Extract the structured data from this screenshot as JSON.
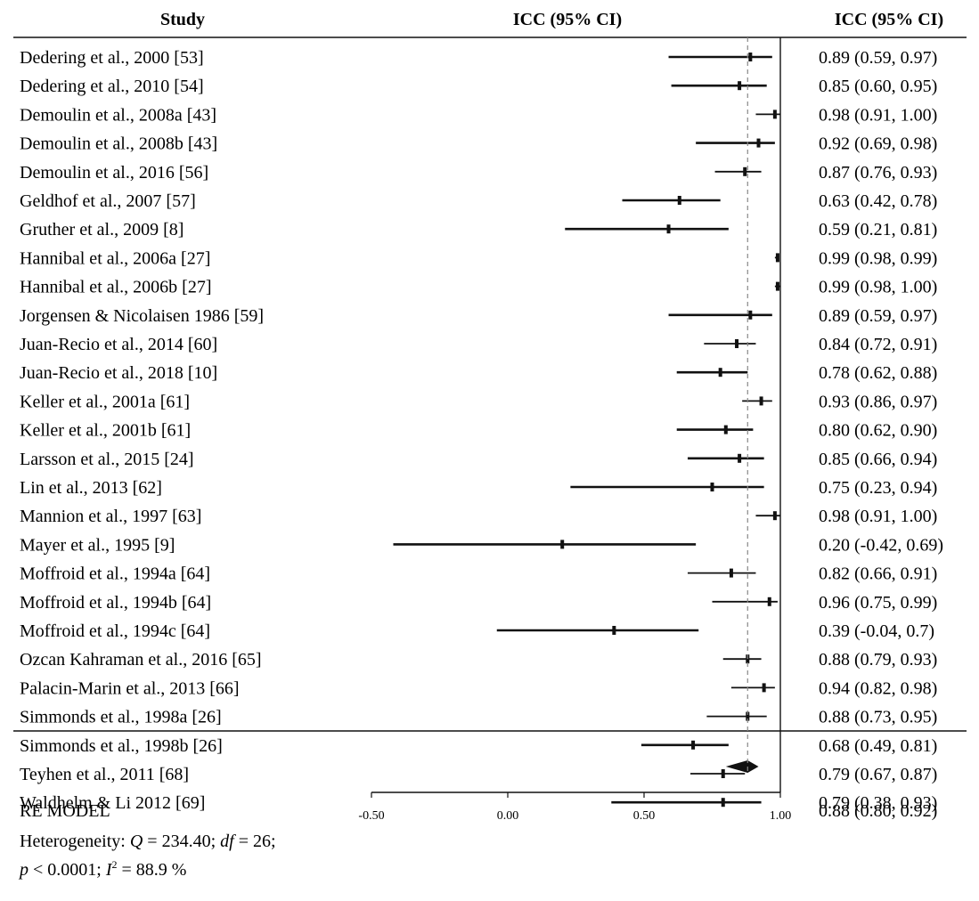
{
  "chart_data": {
    "type": "forest",
    "headers": {
      "study": "Study",
      "plot": "ICC (95% CI)",
      "estimate": "ICC (95% CI)"
    },
    "x_ticks": [
      -0.5,
      0.0,
      0.5,
      1.0
    ],
    "x_tick_labels": [
      "-0.50",
      "0.00",
      "0.50",
      "1.00"
    ],
    "xlim": [
      -0.5,
      1.0
    ],
    "reference_line": 0.88,
    "line_color": "#111111",
    "ref_line_color": "#888888",
    "studies": [
      {
        "label": "Dedering et al., 2000 [53]",
        "icc": 0.89,
        "lo": 0.59,
        "hi": 0.97,
        "text": "0.89 (0.59, 0.97)"
      },
      {
        "label": "Dedering et al., 2010 [54]",
        "icc": 0.85,
        "lo": 0.6,
        "hi": 0.95,
        "text": "0.85 (0.60, 0.95)"
      },
      {
        "label": "Demoulin et al., 2008a [43]",
        "icc": 0.98,
        "lo": 0.91,
        "hi": 1.0,
        "text": "0.98 (0.91, 1.00)"
      },
      {
        "label": "Demoulin et al., 2008b [43]",
        "icc": 0.92,
        "lo": 0.69,
        "hi": 0.98,
        "text": "0.92 (0.69, 0.98)"
      },
      {
        "label": "Demoulin et al., 2016 [56]",
        "icc": 0.87,
        "lo": 0.76,
        "hi": 0.93,
        "text": "0.87 (0.76, 0.93)"
      },
      {
        "label": "Geldhof et al., 2007 [57]",
        "icc": 0.63,
        "lo": 0.42,
        "hi": 0.78,
        "text": "0.63 (0.42, 0.78)"
      },
      {
        "label": "Gruther et al., 2009 [8]",
        "icc": 0.59,
        "lo": 0.21,
        "hi": 0.81,
        "text": "0.59 (0.21, 0.81)"
      },
      {
        "label": "Hannibal et al., 2006a [27]",
        "icc": 0.99,
        "lo": 0.98,
        "hi": 0.99,
        "text": "0.99 (0.98, 0.99)"
      },
      {
        "label": "Hannibal et al., 2006b [27]",
        "icc": 0.99,
        "lo": 0.98,
        "hi": 1.0,
        "text": "0.99 (0.98, 1.00)"
      },
      {
        "label": "Jorgensen & Nicolaisen 1986 [59]",
        "icc": 0.89,
        "lo": 0.59,
        "hi": 0.97,
        "text": "0.89 (0.59, 0.97)"
      },
      {
        "label": "Juan-Recio et al., 2014 [60]",
        "icc": 0.84,
        "lo": 0.72,
        "hi": 0.91,
        "text": "0.84 (0.72, 0.91)"
      },
      {
        "label": "Juan-Recio et al., 2018 [10]",
        "icc": 0.78,
        "lo": 0.62,
        "hi": 0.88,
        "text": "0.78 (0.62, 0.88)"
      },
      {
        "label": "Keller et al., 2001a [61]",
        "icc": 0.93,
        "lo": 0.86,
        "hi": 0.97,
        "text": "0.93 (0.86, 0.97)"
      },
      {
        "label": "Keller et al., 2001b [61]",
        "icc": 0.8,
        "lo": 0.62,
        "hi": 0.9,
        "text": "0.80 (0.62, 0.90)"
      },
      {
        "label": "Larsson et al., 2015 [24]",
        "icc": 0.85,
        "lo": 0.66,
        "hi": 0.94,
        "text": "0.85 (0.66, 0.94)"
      },
      {
        "label": "Lin et al., 2013 [62]",
        "icc": 0.75,
        "lo": 0.23,
        "hi": 0.94,
        "text": "0.75 (0.23, 0.94)"
      },
      {
        "label": "Mannion et al., 1997 [63]",
        "icc": 0.98,
        "lo": 0.91,
        "hi": 1.0,
        "text": "0.98 (0.91, 1.00)"
      },
      {
        "label": "Mayer et al., 1995 [9]",
        "icc": 0.2,
        "lo": -0.42,
        "hi": 0.69,
        "text": "0.20 (-0.42, 0.69)"
      },
      {
        "label": "Moffroid et al., 1994a [64]",
        "icc": 0.82,
        "lo": 0.66,
        "hi": 0.91,
        "text": "0.82 (0.66, 0.91)"
      },
      {
        "label": "Moffroid et al., 1994b [64]",
        "icc": 0.96,
        "lo": 0.75,
        "hi": 0.99,
        "text": "0.96 (0.75, 0.99)"
      },
      {
        "label": "Moffroid et al., 1994c [64]",
        "icc": 0.39,
        "lo": -0.04,
        "hi": 0.7,
        "text": "0.39 (-0.04, 0.7)"
      },
      {
        "label": "Ozcan Kahraman et al., 2016 [65]",
        "icc": 0.88,
        "lo": 0.79,
        "hi": 0.93,
        "text": "0.88 (0.79, 0.93)"
      },
      {
        "label": "Palacin-Marin et al., 2013 [66]",
        "icc": 0.94,
        "lo": 0.82,
        "hi": 0.98,
        "text": "0.94 (0.82, 0.98)"
      },
      {
        "label": "Simmonds et al., 1998a [26]",
        "icc": 0.88,
        "lo": 0.73,
        "hi": 0.95,
        "text": "0.88 (0.73, 0.95)"
      },
      {
        "label": "Simmonds et al., 1998b [26]",
        "icc": 0.68,
        "lo": 0.49,
        "hi": 0.81,
        "text": "0.68 (0.49, 0.81)"
      },
      {
        "label": "Teyhen et al., 2011 [68]",
        "icc": 0.79,
        "lo": 0.67,
        "hi": 0.87,
        "text": "0.79 (0.67, 0.87)"
      },
      {
        "label": "Waldhelm & Li 2012 [69]",
        "icc": 0.79,
        "lo": 0.38,
        "hi": 0.93,
        "text": "0.79 (0.38, 0.93)"
      }
    ],
    "summary": {
      "label": "RE MODEL",
      "icc": 0.88,
      "lo": 0.8,
      "hi": 0.92,
      "text": "0.88 (0.80, 0.92)"
    },
    "heterogeneity": {
      "prefix": "Heterogeneity: ",
      "q_symbol": "Q",
      "q_value": " = 234.40; ",
      "df_symbol": "df",
      "df_value": " = 26;",
      "p_symbol": "p",
      "p_value": " < 0.0001; ",
      "i_symbol": "I",
      "i_sup": "2",
      "i_value": " = 88.9 %"
    }
  }
}
